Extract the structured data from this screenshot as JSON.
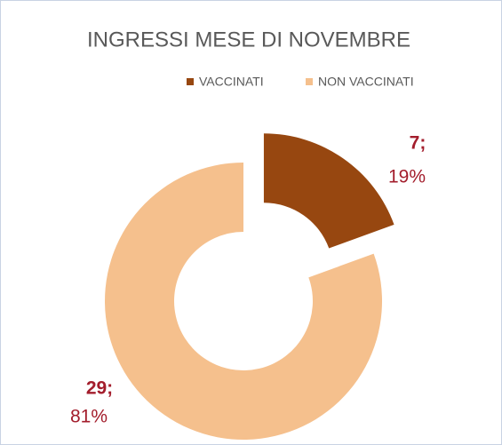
{
  "chart_data": {
    "type": "donut",
    "title": "INGRESSI MESE DI NOVEMBRE",
    "categories": [
      "VACCINATI",
      "NON VACCINATI"
    ],
    "values": [
      7,
      29
    ],
    "value_labels": [
      "7;",
      "29;"
    ],
    "percentages": [
      19,
      81
    ],
    "percentage_labels": [
      "19%",
      "81%"
    ],
    "colors": [
      "#974710",
      "#f5c08d"
    ],
    "legend": "top"
  }
}
